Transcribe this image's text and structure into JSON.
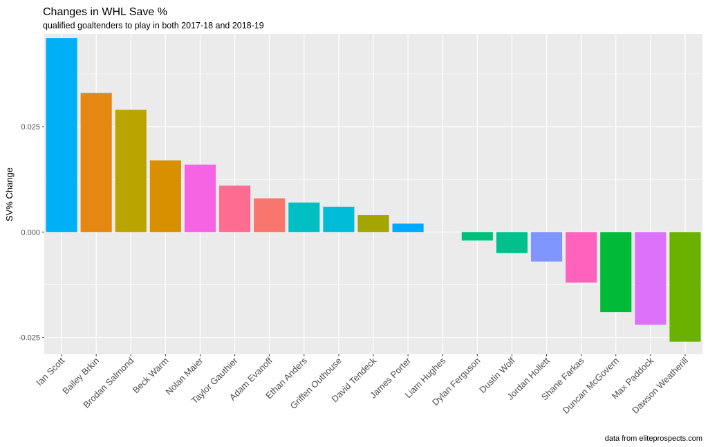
{
  "chart_data": {
    "type": "bar",
    "title": "Changes in WHL Save %",
    "subtitle": "qualified goaltenders to play in both 2017-18 and 2018-19",
    "ylabel": "SV% Change",
    "xlabel": "",
    "caption": "data from eliteprospects.com",
    "ylim": [
      -0.029,
      0.047
    ],
    "yticks": [
      -0.025,
      0.0,
      0.025
    ],
    "ytick_labels": [
      "-0.025",
      "0.000",
      "0.025"
    ],
    "grid": true,
    "legend": "none",
    "categories": [
      "Ian Scott",
      "Bailey Brkin",
      "Brodan Salmond",
      "Beck Warm",
      "Nolan Maier",
      "Taylor Gauthier",
      "Adam Evanoff",
      "Ethan Anders",
      "Griffen Outhouse",
      "David Tendeck",
      "James Porter",
      "Liam Hughes",
      "Dylan Ferguson",
      "Dustin Wolf",
      "Jordan Hollett",
      "Shane Farkas",
      "Duncan McGovern",
      "Max Paddock",
      "Dawson Weatherill"
    ],
    "values": [
      0.046,
      0.033,
      0.029,
      0.017,
      0.016,
      0.011,
      0.008,
      0.007,
      0.006,
      0.004,
      0.002,
      0.0,
      -0.002,
      -0.005,
      -0.007,
      -0.012,
      -0.019,
      -0.022,
      -0.026
    ],
    "colors": [
      "#00B0F6",
      "#E68613",
      "#BAA500",
      "#D89000",
      "#F564E3",
      "#FF6C91",
      "#F8766D",
      "#00BFC4",
      "#00BCD8",
      "#A3A500",
      "#00A9FF",
      "#00B0F6",
      "#00BF7D",
      "#00C08B",
      "#7F96FF",
      "#FF62BC",
      "#00BA38",
      "#DC71FA",
      "#6BB100"
    ],
    "panel_background": "#EBEBEB",
    "grid_major_color": "#FFFFFF"
  }
}
